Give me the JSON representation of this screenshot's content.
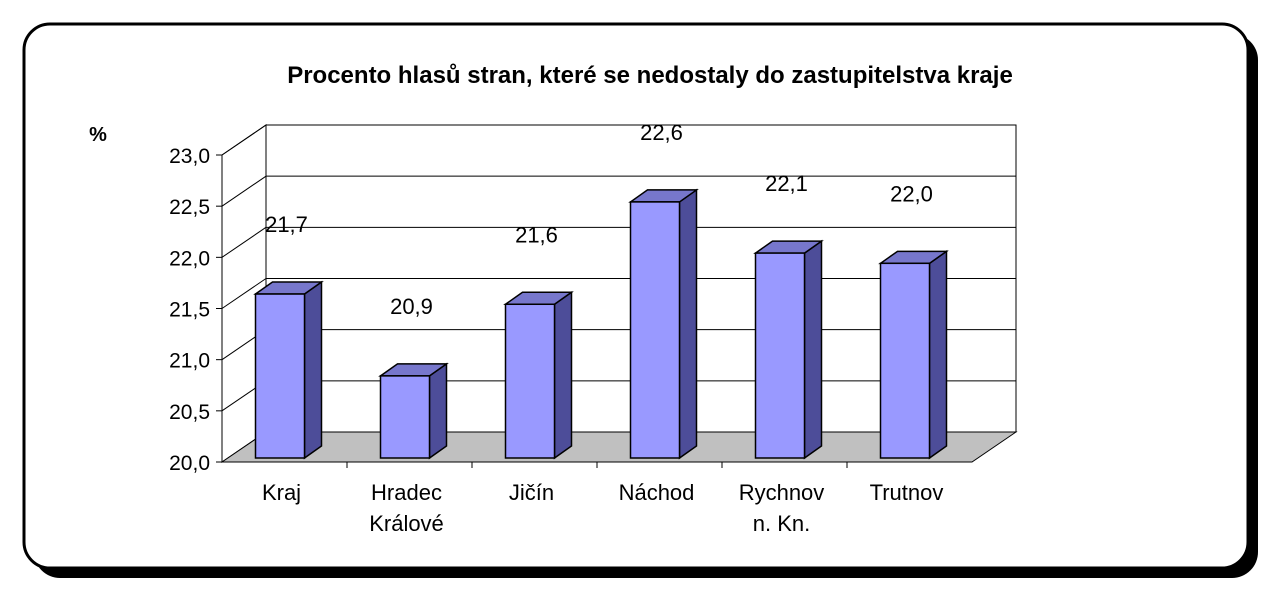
{
  "chart_data": {
    "type": "bar",
    "title": "Procento hlasů stran, které se nedostaly do zastupitelstva kraje",
    "ylabel": "%",
    "xlabel": "",
    "categories": [
      [
        "Kraj"
      ],
      [
        "Hradec",
        "Králové"
      ],
      [
        "Jičín"
      ],
      [
        "Náchod"
      ],
      [
        "Rychnov",
        "n. Kn."
      ],
      [
        "Trutnov"
      ]
    ],
    "values": [
      21.7,
      20.9,
      21.6,
      22.6,
      22.1,
      22.0
    ],
    "value_labels": [
      "21,7",
      "20,9",
      "21,6",
      "22,6",
      "22,1",
      "22,0"
    ],
    "ylim": [
      20.0,
      23.0
    ],
    "yticks": [
      "20,0",
      "20,5",
      "21,0",
      "21,5",
      "22,0",
      "22,5",
      "23,0"
    ],
    "grid": true,
    "legend": "none",
    "style": "3d-column",
    "colors": {
      "bar_front": "#9999ff",
      "bar_side": "#4d4d99",
      "bar_top": "#7777cc",
      "floor": "#c0c0c0",
      "frame_shadow": "#000000"
    }
  }
}
